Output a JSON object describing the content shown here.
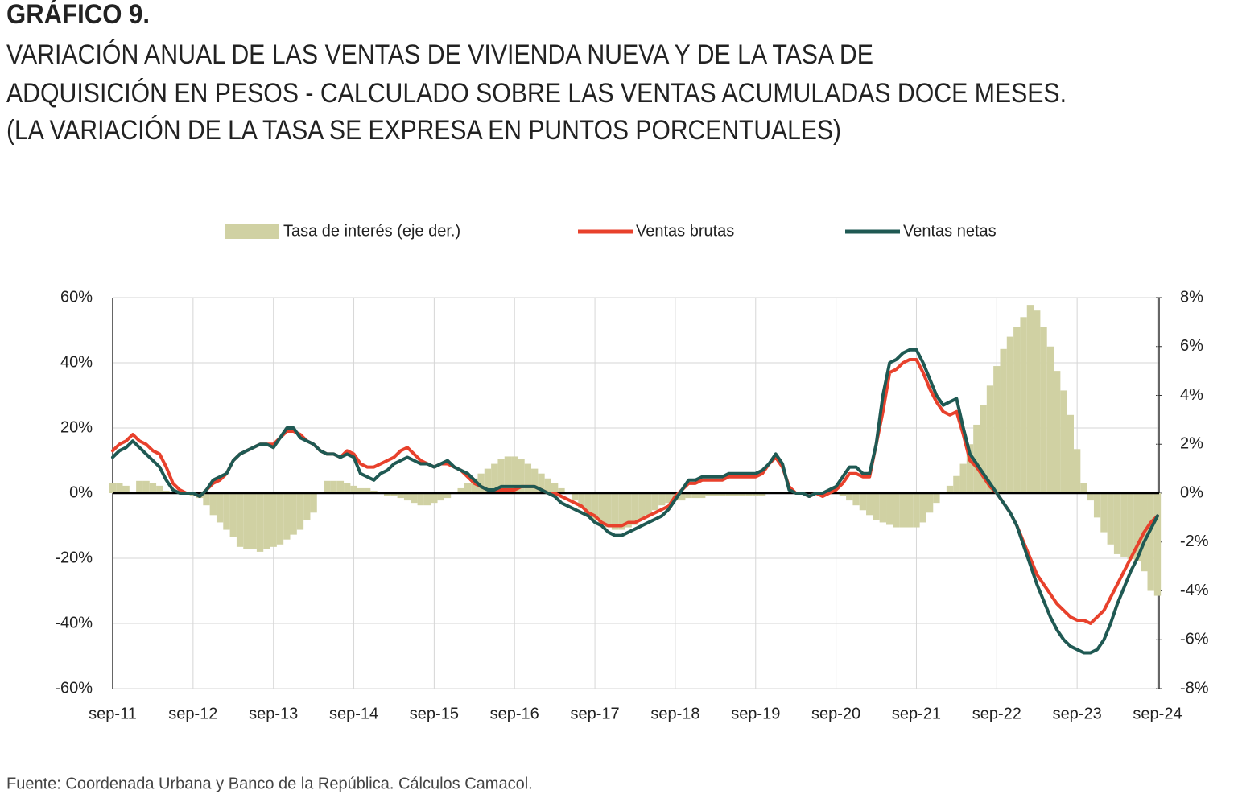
{
  "chart_data": {
    "type": "line",
    "title": "GRÁFICO 9.",
    "subtitle": [
      "VARIACIÓN ANUAL DE LAS VENTAS DE VIVIENDA NUEVA Y DE LA TASA DE",
      "ADQUISICIÓN EN PESOS - CALCULADO SOBRE LAS VENTAS ACUMULADAS DOCE MESES.",
      "(LA VARIACIÓN DE LA TASA SE EXPRESA EN PUNTOS PORCENTUALES)"
    ],
    "source": "Fuente: Coordenada Urbana y Banco de la República. Cálculos Camacol.",
    "categories": [
      "sep-11",
      null,
      null,
      null,
      null,
      null,
      null,
      null,
      null,
      null,
      null,
      null,
      "sep-12",
      null,
      null,
      null,
      null,
      null,
      null,
      null,
      null,
      null,
      null,
      null,
      "sep-13",
      null,
      null,
      null,
      null,
      null,
      null,
      null,
      null,
      null,
      null,
      null,
      "sep-14",
      null,
      null,
      null,
      null,
      null,
      null,
      null,
      null,
      null,
      null,
      null,
      "sep-15",
      null,
      null,
      null,
      null,
      null,
      null,
      null,
      null,
      null,
      null,
      null,
      "sep-16",
      null,
      null,
      null,
      null,
      null,
      null,
      null,
      null,
      null,
      null,
      null,
      "sep-17",
      null,
      null,
      null,
      null,
      null,
      null,
      null,
      null,
      null,
      null,
      null,
      "sep-18",
      null,
      null,
      null,
      null,
      null,
      null,
      null,
      null,
      null,
      null,
      null,
      "sep-19",
      null,
      null,
      null,
      null,
      null,
      null,
      null,
      null,
      null,
      null,
      null,
      "sep-20",
      null,
      null,
      null,
      null,
      null,
      null,
      null,
      null,
      null,
      null,
      null,
      "sep-21",
      null,
      null,
      null,
      null,
      null,
      null,
      null,
      null,
      null,
      null,
      null,
      "sep-22",
      null,
      null,
      null,
      null,
      null,
      null,
      null,
      null,
      null,
      null,
      null,
      "sep-23",
      null,
      null,
      null,
      null,
      null,
      null,
      null,
      null,
      null,
      null,
      null,
      "sep-24"
    ],
    "series": [
      {
        "name": "Tasa de interés (eje der.)",
        "type": "bar",
        "axis": "y2",
        "color": "#d0d1a3",
        "values": [
          0.4,
          0.4,
          0.3,
          0,
          0.5,
          0.5,
          0.4,
          0.3,
          0.1,
          0,
          0,
          0,
          -0.1,
          -0.2,
          -0.5,
          -0.9,
          -1.2,
          -1.5,
          -1.8,
          -2.2,
          -2.3,
          -2.3,
          -2.4,
          -2.3,
          -2.2,
          -2.1,
          -1.9,
          -1.7,
          -1.5,
          -1.1,
          -0.8,
          0,
          0.5,
          0.5,
          0.5,
          0.4,
          0.3,
          0.2,
          0.2,
          0.1,
          0,
          -0.1,
          -0.1,
          -0.2,
          -0.3,
          -0.4,
          -0.5,
          -0.5,
          -0.4,
          -0.3,
          -0.2,
          0,
          0.2,
          0.4,
          0.6,
          0.8,
          1.0,
          1.2,
          1.4,
          1.5,
          1.5,
          1.4,
          1.2,
          1.0,
          0.8,
          0.6,
          0.4,
          0.2,
          0,
          -0.3,
          -0.6,
          -0.9,
          -1.1,
          -1.3,
          -1.4,
          -1.5,
          -1.5,
          -1.4,
          -1.3,
          -1.1,
          -0.9,
          -0.7,
          -0.5,
          -0.4,
          -0.3,
          -0.3,
          -0.2,
          -0.2,
          -0.2,
          -0.1,
          -0.1,
          -0.1,
          -0.1,
          -0.1,
          -0.1,
          -0.1,
          -0.1,
          -0.1,
          0,
          0,
          0,
          0,
          0,
          0,
          0,
          0,
          0,
          0,
          0,
          -0.1,
          -0.3,
          -0.5,
          -0.7,
          -0.9,
          -1.1,
          -1.2,
          -1.3,
          -1.4,
          -1.4,
          -1.4,
          -1.4,
          -1.2,
          -0.8,
          -0.4,
          0,
          0.3,
          0.7,
          1.2,
          2.0,
          2.8,
          3.6,
          4.4,
          5.2,
          5.9,
          6.4,
          6.8,
          7.2,
          7.7,
          7.5,
          6.8,
          6.0,
          5.0,
          4.2,
          3.2,
          1.8,
          0.4,
          -0.3,
          -1.0,
          -1.6,
          -2.1,
          -2.5,
          -2.6,
          -2.7,
          -2.8,
          -3.2,
          -4.0,
          -4.2
        ]
      },
      {
        "name": "Ventas brutas",
        "type": "line",
        "color": "#e8412c",
        "values": [
          13,
          15,
          16,
          18,
          16,
          15,
          13,
          12,
          8,
          3,
          1,
          0,
          0,
          -1,
          1,
          3,
          4,
          6,
          10,
          12,
          13,
          14,
          15,
          15,
          15,
          17,
          19,
          19,
          18,
          16,
          15,
          13,
          12,
          12,
          11,
          13,
          12,
          9,
          8,
          8,
          9,
          10,
          11,
          13,
          14,
          12,
          10,
          9,
          8,
          9,
          9,
          8,
          7,
          5,
          3,
          2,
          1,
          1,
          1,
          1,
          1,
          2,
          2,
          2,
          1,
          0,
          0,
          -1,
          -2,
          -3,
          -4,
          -6,
          -7,
          -9,
          -10,
          -10,
          -10,
          -9,
          -9,
          -8,
          -7,
          -6,
          -5,
          -4,
          -1,
          1,
          3,
          3,
          4,
          4,
          4,
          4,
          5,
          5,
          5,
          5,
          5,
          6,
          9,
          11,
          8,
          2,
          0,
          0,
          -1,
          0,
          -1,
          0,
          1,
          3,
          6,
          6,
          5,
          5,
          15,
          25,
          37,
          38,
          40,
          41,
          41,
          37,
          32,
          28,
          25,
          24,
          25,
          18,
          10,
          8,
          5,
          2,
          0,
          -3,
          -6,
          -10,
          -15,
          -20,
          -25,
          -28,
          -31,
          -34,
          -36,
          -38,
          -39,
          -39,
          -40,
          -38,
          -36,
          -32,
          -28,
          -24,
          -20,
          -16,
          -12,
          -9,
          -7
        ]
      },
      {
        "name": "Ventas netas",
        "type": "line",
        "color": "#1f5953",
        "values": [
          11,
          13,
          14,
          16,
          14,
          12,
          10,
          8,
          4,
          1,
          0,
          0,
          0,
          -1,
          1,
          4,
          5,
          6,
          10,
          12,
          13,
          14,
          15,
          15,
          14,
          17,
          20,
          20,
          17,
          16,
          15,
          13,
          12,
          12,
          11,
          12,
          11,
          6,
          5,
          4,
          6,
          7,
          9,
          10,
          11,
          10,
          9,
          9,
          8,
          9,
          10,
          8,
          7,
          6,
          4,
          2,
          1,
          1,
          2,
          2,
          2,
          2,
          2,
          2,
          1,
          0,
          -1,
          -3,
          -4,
          -5,
          -6,
          -7,
          -9,
          -10,
          -12,
          -13,
          -13,
          -12,
          -11,
          -10,
          -9,
          -8,
          -7,
          -5,
          -2,
          1,
          4,
          4,
          5,
          5,
          5,
          5,
          6,
          6,
          6,
          6,
          6,
          7,
          9,
          12,
          9,
          1,
          0,
          0,
          -1,
          0,
          0,
          1,
          2,
          5,
          8,
          8,
          6,
          6,
          15,
          30,
          40,
          41,
          43,
          44,
          44,
          40,
          35,
          30,
          27,
          28,
          29,
          20,
          12,
          9,
          6,
          3,
          0,
          -3,
          -6,
          -10,
          -16,
          -22,
          -28,
          -33,
          -38,
          -42,
          -45,
          -47,
          -48,
          -49,
          -49,
          -48,
          -45,
          -40,
          -34,
          -29,
          -24,
          -20,
          -15,
          -11,
          -7
        ]
      }
    ],
    "ylim": [
      -60,
      60
    ],
    "yticks": [
      {
        "value": -60,
        "label": "-60%"
      },
      {
        "value": -40,
        "label": "-40%"
      },
      {
        "value": -20,
        "label": "-20%"
      },
      {
        "value": 0,
        "label": "0%"
      },
      {
        "value": 20,
        "label": "20%"
      },
      {
        "value": 40,
        "label": "40%"
      },
      {
        "value": 60,
        "label": "60%"
      }
    ],
    "y2lim": [
      -8,
      8
    ],
    "y2ticks": [
      {
        "value": -8,
        "label": "-8%"
      },
      {
        "value": -6,
        "label": "-6%"
      },
      {
        "value": -4,
        "label": "-4%"
      },
      {
        "value": -2,
        "label": "-2%"
      },
      {
        "value": 0,
        "label": "0%"
      },
      {
        "value": 2,
        "label": "2%"
      },
      {
        "value": 4,
        "label": "4%"
      },
      {
        "value": 6,
        "label": "6%"
      },
      {
        "value": 8,
        "label": "8%"
      }
    ],
    "grid": true,
    "legend": "top"
  }
}
